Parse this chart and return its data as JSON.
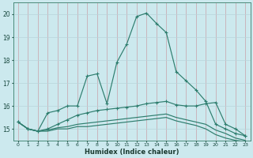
{
  "xlabel": "Humidex (Indice chaleur)",
  "background_color": "#cce9ee",
  "grid_color": "#b0d8df",
  "line_color": "#2e7d6e",
  "xlim": [
    -0.5,
    23.5
  ],
  "ylim": [
    14.5,
    20.5
  ],
  "yticks": [
    15,
    16,
    17,
    18,
    19,
    20
  ],
  "xticks": [
    0,
    1,
    2,
    3,
    4,
    5,
    6,
    7,
    8,
    9,
    10,
    11,
    12,
    13,
    14,
    15,
    16,
    17,
    18,
    19,
    20,
    21,
    22,
    23
  ],
  "x": [
    0,
    1,
    2,
    3,
    4,
    5,
    6,
    7,
    8,
    9,
    10,
    11,
    12,
    13,
    14,
    15,
    16,
    17,
    18,
    19,
    20,
    21,
    22,
    23
  ],
  "line1": [
    15.3,
    15.0,
    14.9,
    15.7,
    15.8,
    16.0,
    16.0,
    17.3,
    17.4,
    16.1,
    17.9,
    18.7,
    19.9,
    20.05,
    19.6,
    19.2,
    17.5,
    17.1,
    16.7,
    16.2,
    15.2,
    15.0,
    14.8,
    14.7
  ],
  "line2": [
    15.3,
    15.0,
    14.9,
    15.0,
    15.2,
    15.4,
    15.6,
    15.7,
    15.8,
    15.85,
    15.9,
    15.95,
    16.0,
    16.1,
    16.15,
    16.2,
    16.05,
    16.0,
    16.0,
    16.1,
    16.15,
    15.2,
    15.0,
    14.7
  ],
  "line3": [
    15.3,
    15.0,
    14.9,
    14.95,
    15.05,
    15.1,
    15.2,
    15.25,
    15.3,
    15.35,
    15.4,
    15.45,
    15.5,
    15.55,
    15.6,
    15.65,
    15.5,
    15.4,
    15.3,
    15.2,
    14.95,
    14.8,
    14.6,
    14.5
  ],
  "line4": [
    15.3,
    15.0,
    14.9,
    14.9,
    15.0,
    15.0,
    15.1,
    15.1,
    15.15,
    15.2,
    15.25,
    15.3,
    15.35,
    15.4,
    15.45,
    15.5,
    15.35,
    15.25,
    15.15,
    15.0,
    14.75,
    14.6,
    14.5,
    14.45
  ]
}
